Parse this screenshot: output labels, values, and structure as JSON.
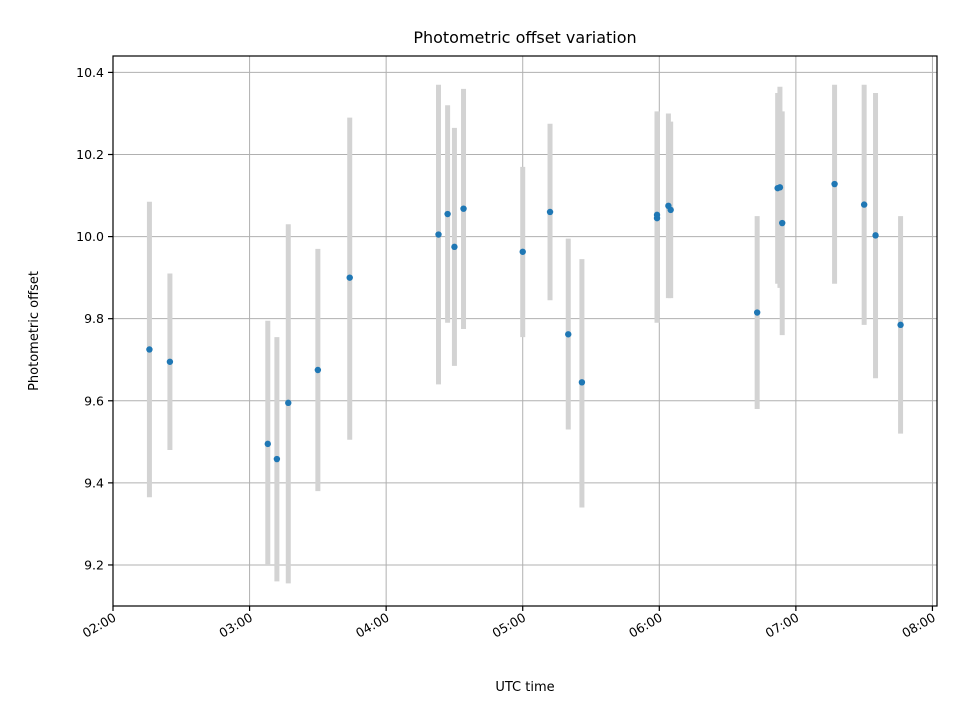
{
  "chart_data": {
    "type": "scatter",
    "title": "Photometric offset variation",
    "xlabel": "UTC time",
    "ylabel": "Photometric offset",
    "xlim": [
      "02:00",
      "08:02"
    ],
    "ylim": [
      9.1,
      10.44
    ],
    "x_ticks": [
      "02:00",
      "03:00",
      "04:00",
      "05:00",
      "06:00",
      "07:00",
      "08:00"
    ],
    "y_ticks": [
      "9.2",
      "9.4",
      "9.6",
      "9.8",
      "10.0",
      "10.2",
      "10.4"
    ],
    "grid": true,
    "point_color": "#1f77b4",
    "errorbar_color": "#d3d3d3",
    "points": [
      {
        "t": "02:16",
        "y": 9.725,
        "lo": 9.365,
        "hi": 10.085
      },
      {
        "t": "02:25",
        "y": 9.695,
        "lo": 9.48,
        "hi": 9.91
      },
      {
        "t": "03:08",
        "y": 9.495,
        "lo": 9.2,
        "hi": 9.795
      },
      {
        "t": "03:12",
        "y": 9.458,
        "lo": 9.16,
        "hi": 9.755
      },
      {
        "t": "03:17",
        "y": 9.595,
        "lo": 9.155,
        "hi": 10.03
      },
      {
        "t": "03:30",
        "y": 9.675,
        "lo": 9.38,
        "hi": 9.97
      },
      {
        "t": "03:44",
        "y": 9.9,
        "lo": 9.505,
        "hi": 10.29
      },
      {
        "t": "04:23",
        "y": 10.005,
        "lo": 9.64,
        "hi": 10.37
      },
      {
        "t": "04:27",
        "y": 10.055,
        "lo": 9.79,
        "hi": 10.32
      },
      {
        "t": "04:30",
        "y": 9.975,
        "lo": 9.685,
        "hi": 10.265
      },
      {
        "t": "04:34",
        "y": 10.068,
        "lo": 9.775,
        "hi": 10.36
      },
      {
        "t": "05:00",
        "y": 9.963,
        "lo": 9.755,
        "hi": 10.17
      },
      {
        "t": "05:12",
        "y": 10.06,
        "lo": 9.845,
        "hi": 10.275
      },
      {
        "t": "05:20",
        "y": 9.762,
        "lo": 9.53,
        "hi": 9.995
      },
      {
        "t": "05:26",
        "y": 9.645,
        "lo": 9.34,
        "hi": 9.945
      },
      {
        "t": "05:59",
        "y": 10.045,
        "lo": 9.79,
        "hi": 10.305
      },
      {
        "t": "05:59",
        "y": 10.053,
        "lo": 9.8,
        "hi": 10.3
      },
      {
        "t": "06:04",
        "y": 10.075,
        "lo": 9.85,
        "hi": 10.3
      },
      {
        "t": "06:05",
        "y": 10.065,
        "lo": 9.85,
        "hi": 10.28
      },
      {
        "t": "06:43",
        "y": 9.815,
        "lo": 9.58,
        "hi": 10.05
      },
      {
        "t": "06:52",
        "y": 10.118,
        "lo": 9.885,
        "hi": 10.35
      },
      {
        "t": "06:53",
        "y": 10.12,
        "lo": 9.875,
        "hi": 10.365
      },
      {
        "t": "06:54",
        "y": 10.033,
        "lo": 9.76,
        "hi": 10.305
      },
      {
        "t": "07:17",
        "y": 10.128,
        "lo": 9.885,
        "hi": 10.37
      },
      {
        "t": "07:30",
        "y": 10.078,
        "lo": 9.785,
        "hi": 10.37
      },
      {
        "t": "07:35",
        "y": 10.003,
        "lo": 9.655,
        "hi": 10.35
      },
      {
        "t": "07:46",
        "y": 9.785,
        "lo": 9.52,
        "hi": 10.05
      }
    ]
  }
}
